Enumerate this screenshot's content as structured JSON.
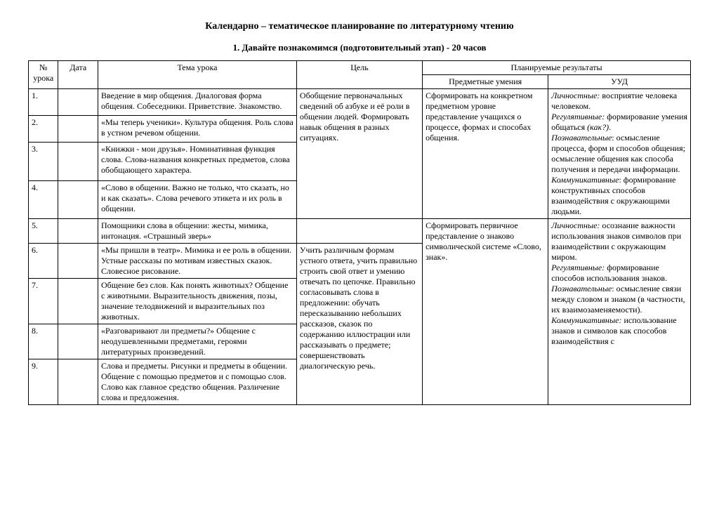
{
  "title": "Календарно – тематическое планирование по литературному чтению",
  "subtitle": "1.   Давайте познакомимся (подготовительный этап) - 20 часов",
  "headers": {
    "num": "№ урока",
    "date": "Дата",
    "topic": "Тема урока",
    "goal": "Цель",
    "results": "Планируемые результаты",
    "pred": "Предметные умения",
    "uud": "УУД"
  },
  "rows": {
    "r1_num": "1.",
    "r1_topic": "Введение в мир общения. Диалоговая форма общения. Собеседники. Приветствие. Знакомство.",
    "r2_num": "2.",
    "r2_topic": "«Мы теперь ученики». Культура общения. Роль слова в устном речевом общении.",
    "r3_num": "3.",
    "r3_topic": "«Книжки - мои друзья». Номинативная функция слова. Слова-названия конкретных предметов, слова обобщающего характера.",
    "r4_num": "4.",
    "r4_topic": "«Слово в общении. Важно не только, что сказать, но и как сказать». Слова речевого этикета и их роль в общении.",
    "r5_num": "5.",
    "r5_topic": "Помощники слова в общении: жесты, мимика, интонация. «Страшный зверь»",
    "r6_num": "6.",
    "r6_topic": "«Мы пришли в театр». Мимика и ее роль в общении. Устные рассказы по мотивам известных сказок. Словесное рисование.",
    "r7_num": "7.",
    "r7_topic": "Общение без слов. Как понять животных? Общение с животными. Выразительность движения, позы, значение телодвижений и выразительных поз животных.",
    "r8_num": "8.",
    "r8_topic": "«Разговаривают ли предметы?» Общение с неодушевленными предметами, героями литературных произведений.",
    "r9_num": "9.",
    "r9_topic": "Слова и предметы. Рисунки и предметы в общении. Общение с помощью предметов и с помощью слов. Слово как главное средство общения. Различение слова и предложения."
  },
  "goal_block1": "Обобщение первоначальных сведений об азбуке и её роли в общении людей. Формировать навык общения  в разных ситуациях.",
  "goal_block2": "Учить  различным формам устного ответа, учить правильно строить свой ответ и умению отвечать по цепочке. Правильно согласовывать слова  в предложении: обучать пересказыванию  небольших рассказов, сказок по содержанию иллюстрации или рассказывать о предмете; совершенствовать диалогическую речь.",
  "pred_block1": "Сформировать на конкретном предметном уровне представление учащихся о процессе, формах и способах общения.",
  "pred_block2": "Сформировать первичное представление о знаково символической системе «Слово, знак».",
  "uud1": {
    "lich_label": "Личностные:",
    "lich_text": " восприятие человека человеком.",
    "reg_label": "Регулятивные:",
    "reg_text": " формирование умения общаться ",
    "reg_text2": "(как?)",
    "pozn_label": "Познавательные",
    "pozn_text": ": осмысление процесса, форм и способов общения; осмысление общения как способа получения и передачи информации.",
    "komm_label": "Коммуникативные",
    "komm_text": ": формирование конструктивных способов взаимодействия с окружающими людьми."
  },
  "uud2": {
    "lich_label": "Личностные:",
    "lich_text": " осознание важности использования знаков символов при взаимодействии с окружающим миром.",
    "reg_label": "Регулятивные:",
    "reg_text": " формирование способов использования знаков.",
    "pozn_label": "Познавательные",
    "pozn_text": ": осмысление связи между словом и знаком (в частности, их взаимозаменяемости).",
    "komm_label": "Коммуникативные:",
    "komm_text": " использование знаков и символов как способов взаимодействия с"
  }
}
